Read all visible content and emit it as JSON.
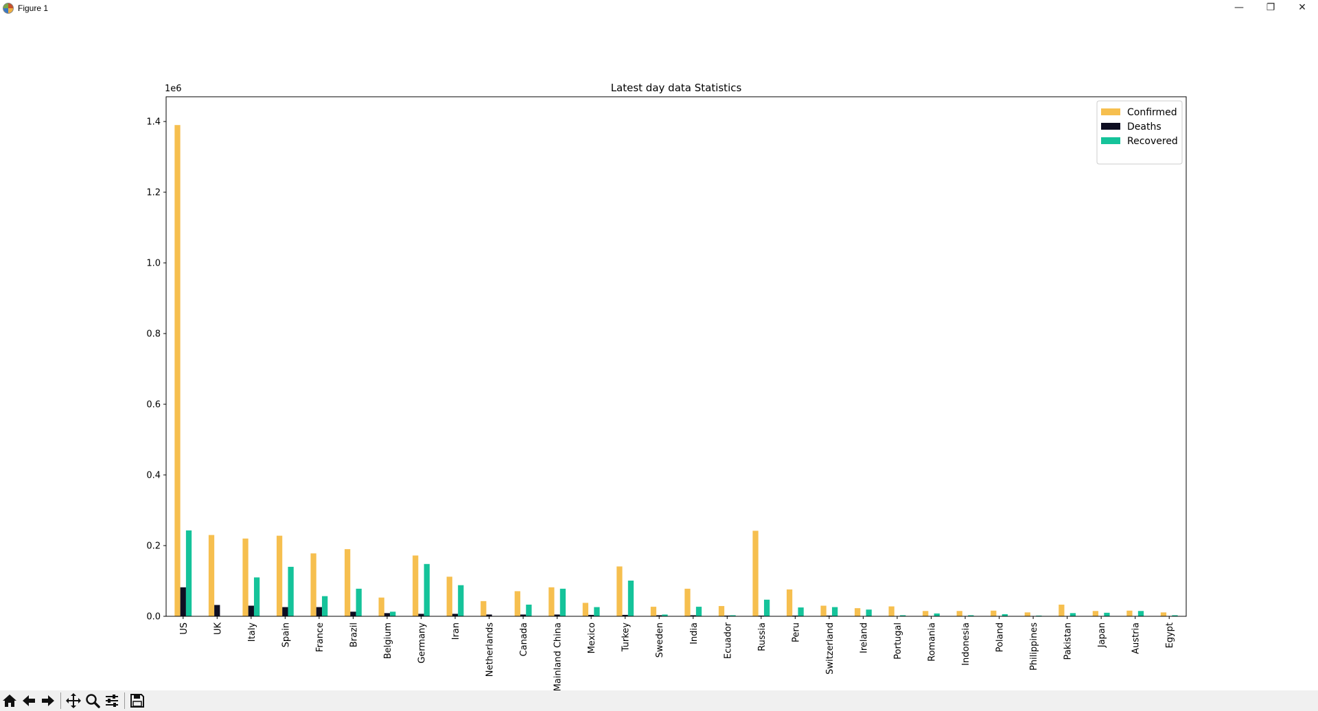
{
  "window": {
    "title": "Figure 1",
    "controls": {
      "minimize": "—",
      "restore": "❐",
      "close": "✕"
    }
  },
  "toolbar": {
    "icons": [
      "home-icon",
      "back-arrow-icon",
      "forward-arrow-icon",
      "pan-icon",
      "zoom-icon",
      "configure-subplots-icon",
      "save-icon"
    ]
  },
  "chart_data": {
    "type": "bar",
    "title": "Latest day data Statistics",
    "xlabel": "",
    "ylabel": "",
    "y_offset_label": "1e6",
    "ylim": [
      0,
      1.47
    ],
    "yticks": [
      0.0,
      0.2,
      0.4,
      0.6,
      0.8,
      1.0,
      1.2,
      1.4
    ],
    "ytick_labels": [
      "0.0",
      "0.2",
      "0.4",
      "0.6",
      "0.8",
      "1.0",
      "1.2",
      "1.4"
    ],
    "grid": false,
    "legend_position": "top-right",
    "categories": [
      "US",
      "UK",
      "Italy",
      "Spain",
      "France",
      "Brazil",
      "Belgium",
      "Germany",
      "Iran",
      "Netherlands",
      "Canada",
      "Mainland China",
      "Mexico",
      "Turkey",
      "Sweden",
      "India",
      "Ecuador",
      "Russia",
      "Peru",
      "Switzerland",
      "Ireland",
      "Portugal",
      "Romania",
      "Indonesia",
      "Poland",
      "Philippines",
      "Pakistan",
      "Japan",
      "Austria",
      "Egypt"
    ],
    "series": [
      {
        "name": "Confirmed",
        "color": "#f6bf4f",
        "values": [
          1.39,
          0.23,
          0.22,
          0.228,
          0.178,
          0.19,
          0.053,
          0.172,
          0.112,
          0.043,
          0.071,
          0.082,
          0.038,
          0.141,
          0.027,
          0.078,
          0.029,
          0.242,
          0.076,
          0.03,
          0.023,
          0.028,
          0.015,
          0.015,
          0.016,
          0.011,
          0.033,
          0.015,
          0.016,
          0.011
        ]
      },
      {
        "name": "Deaths",
        "color": "#0e0e22",
        "values": [
          0.082,
          0.032,
          0.03,
          0.026,
          0.026,
          0.013,
          0.009,
          0.007,
          0.007,
          0.005,
          0.005,
          0.005,
          0.004,
          0.004,
          0.003,
          0.003,
          0.002,
          0.002,
          0.002,
          0.002,
          0.001,
          0.001,
          0.001,
          0.001,
          0.001,
          0.001,
          0.001,
          0.001,
          0.001,
          0.001
        ]
      },
      {
        "name": "Recovered",
        "color": "#15c39a",
        "values": [
          0.243,
          0.001,
          0.11,
          0.14,
          0.057,
          0.078,
          0.013,
          0.148,
          0.088,
          0.0,
          0.033,
          0.078,
          0.026,
          0.101,
          0.005,
          0.027,
          0.003,
          0.047,
          0.025,
          0.026,
          0.019,
          0.003,
          0.008,
          0.003,
          0.006,
          0.002,
          0.009,
          0.01,
          0.015,
          0.003
        ]
      }
    ]
  }
}
